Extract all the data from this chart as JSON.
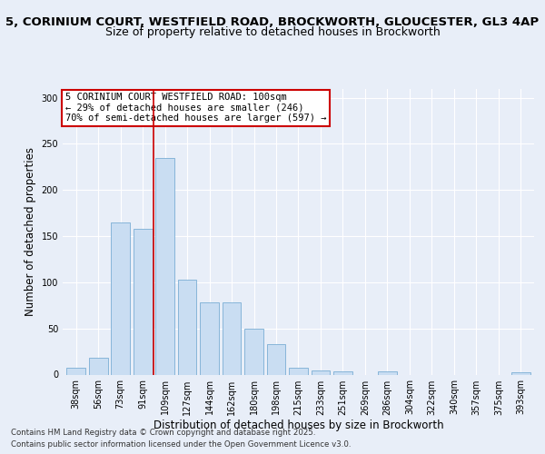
{
  "title_line1": "5, CORINIUM COURT, WESTFIELD ROAD, BROCKWORTH, GLOUCESTER, GL3 4AP",
  "title_line2": "Size of property relative to detached houses in Brockworth",
  "xlabel": "Distribution of detached houses by size in Brockworth",
  "ylabel": "Number of detached properties",
  "categories": [
    "38sqm",
    "56sqm",
    "73sqm",
    "91sqm",
    "109sqm",
    "127sqm",
    "144sqm",
    "162sqm",
    "180sqm",
    "198sqm",
    "215sqm",
    "233sqm",
    "251sqm",
    "269sqm",
    "286sqm",
    "304sqm",
    "322sqm",
    "340sqm",
    "357sqm",
    "375sqm",
    "393sqm"
  ],
  "values": [
    7,
    18,
    165,
    158,
    235,
    103,
    78,
    78,
    50,
    33,
    7,
    4,
    3,
    0,
    3,
    0,
    0,
    0,
    0,
    0,
    2
  ],
  "bar_color": "#c9ddf2",
  "bar_edge_color": "#7aadd4",
  "vline_x": 3.5,
  "vline_color": "#cc0000",
  "annotation_text": "5 CORINIUM COURT WESTFIELD ROAD: 100sqm\n← 29% of detached houses are smaller (246)\n70% of semi-detached houses are larger (597) →",
  "annotation_box_color": "#ffffff",
  "annotation_box_edge_color": "#cc0000",
  "ylim": [
    0,
    310
  ],
  "yticks": [
    0,
    50,
    100,
    150,
    200,
    250,
    300
  ],
  "bg_color": "#e8eef8",
  "plot_bg_color": "#e8eef8",
  "footer_line1": "Contains HM Land Registry data © Crown copyright and database right 2025.",
  "footer_line2": "Contains public sector information licensed under the Open Government Licence v3.0.",
  "title_fontsize": 9.5,
  "title2_fontsize": 9,
  "axis_label_fontsize": 8.5,
  "tick_fontsize": 7,
  "annotation_fontsize": 7.5,
  "footer_fontsize": 6.2
}
